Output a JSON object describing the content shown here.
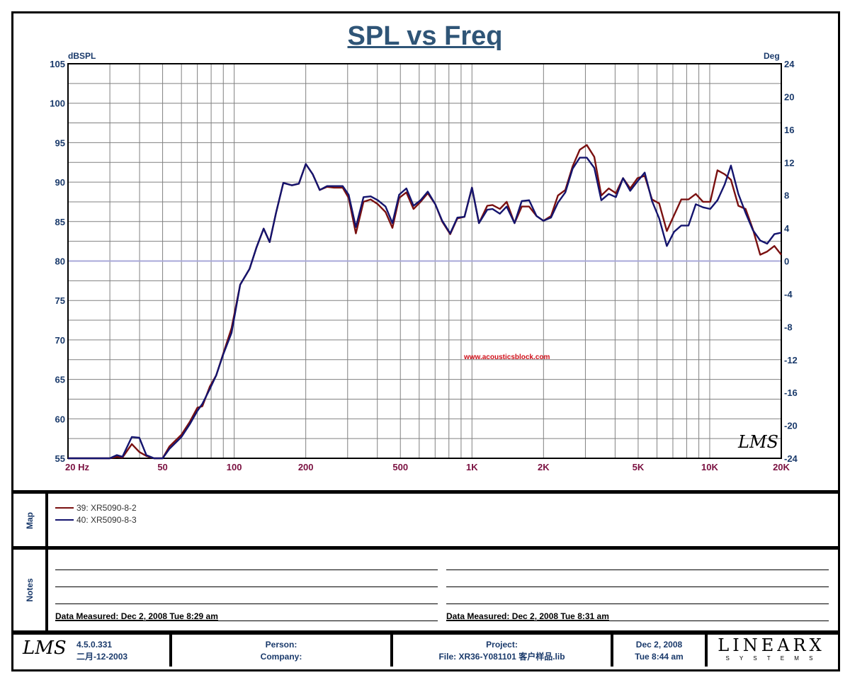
{
  "chart_data": {
    "type": "line",
    "title": "SPL vs Freq",
    "xlabel": "Hz",
    "ylabel": "dBSPL",
    "y2label": "Deg",
    "xscale": "log",
    "xlim": [
      20,
      20000
    ],
    "ylim": [
      55,
      105
    ],
    "y2lim": [
      -24,
      24
    ],
    "x_tick_labels": [
      {
        "v": 20,
        "t": "20  Hz"
      },
      {
        "v": 50,
        "t": "50"
      },
      {
        "v": 100,
        "t": "100"
      },
      {
        "v": 200,
        "t": "200"
      },
      {
        "v": 500,
        "t": "500"
      },
      {
        "v": 1000,
        "t": "1K"
      },
      {
        "v": 2000,
        "t": "2K"
      },
      {
        "v": 5000,
        "t": "5K"
      },
      {
        "v": 10000,
        "t": "10K"
      },
      {
        "v": 20000,
        "t": "20K"
      }
    ],
    "y_tick_labels": [
      "105",
      "100",
      "95",
      "90",
      "85",
      "80",
      "75",
      "70",
      "65",
      "60",
      "55"
    ],
    "y2_tick_labels": [
      "24",
      "20",
      "16",
      "12",
      "8",
      "4",
      "0",
      "-4",
      "-8",
      "-12",
      "-16",
      "-20",
      "-24"
    ],
    "grid": true,
    "x": [
      20,
      30,
      32.1,
      33.9,
      37.1,
      39.9,
      42.7,
      46,
      50,
      53.4,
      60,
      65,
      70,
      73.5,
      79,
      84,
      90,
      97.5,
      106,
      116,
      124,
      133,
      141,
      150,
      161,
      175,
      187,
      200,
      214,
      229,
      246,
      263,
      286,
      303,
      325,
      350,
      375,
      402,
      433,
      463,
      494,
      530,
      568,
      608,
      652,
      701,
      750,
      810,
      868,
      930,
      1000,
      1070,
      1160,
      1220,
      1310,
      1400,
      1510,
      1620,
      1740,
      1870,
      2000,
      2150,
      2300,
      2470,
      2650,
      2840,
      3040,
      3270,
      3500,
      3760,
      4030,
      4320,
      4630,
      4970,
      5330,
      5720,
      6130,
      6600,
      7080,
      7590,
      8140,
      8740,
      9370,
      10050,
      10780,
      11560,
      12280,
      13200,
      14150,
      15200,
      16300,
      17450,
      18700,
      20000
    ],
    "series": [
      {
        "name": "39: XR5090-8-2",
        "color": "#7a1010",
        "values": [
          55,
          55,
          55.2,
          55.1,
          56.8,
          55.8,
          55.3,
          55,
          55,
          56.5,
          58,
          59.6,
          61.4,
          61.6,
          64.1,
          65.5,
          68.3,
          71.5,
          77,
          79,
          81.7,
          84.1,
          82.4,
          86.1,
          89.9,
          89.6,
          89.8,
          92.3,
          91,
          89,
          89.4,
          89.3,
          89.3,
          88,
          83.5,
          87.5,
          87.8,
          87.2,
          86.2,
          84.2,
          88,
          88.7,
          86.6,
          87.5,
          88.6,
          87.2,
          85,
          83.4,
          85.4,
          85.6,
          89.3,
          84.8,
          87,
          87.1,
          86.6,
          87.5,
          84.8,
          86.9,
          86.9,
          85.7,
          85.1,
          85.7,
          88.3,
          89,
          92,
          94.1,
          94.7,
          93.2,
          88.3,
          89.2,
          88.6,
          90.5,
          89.2,
          90.5,
          90.8,
          87.8,
          87.3,
          83.8,
          85.8,
          87.8,
          87.8,
          88.5,
          87.5,
          87.5,
          91.5,
          91,
          90.3,
          87,
          86.6,
          84,
          80.8,
          81.2,
          81.9,
          80.8
        ]
      },
      {
        "name": "40: XR5090-8-3",
        "color": "#14146e",
        "values": [
          55,
          55,
          55.4,
          55.2,
          57.7,
          57.6,
          55.4,
          55,
          55,
          56.2,
          57.7,
          59.3,
          61,
          61.9,
          63.8,
          65.5,
          68.2,
          70.9,
          77,
          79,
          81.7,
          84.1,
          82.4,
          86.1,
          89.9,
          89.6,
          89.8,
          92.3,
          91,
          89,
          89.5,
          89.5,
          89.5,
          88.4,
          84.3,
          88.1,
          88.2,
          87.7,
          86.9,
          84.8,
          88.4,
          89.2,
          87,
          87.7,
          88.8,
          87.2,
          85.1,
          83.5,
          85.5,
          85.6,
          89.3,
          84.8,
          86.5,
          86.6,
          86,
          86.9,
          84.8,
          87.6,
          87.7,
          85.7,
          85.1,
          85.5,
          87.4,
          88.7,
          91.7,
          93.1,
          93.1,
          91.8,
          87.7,
          88.5,
          88.1,
          90.5,
          88.9,
          90.1,
          91.2,
          87.6,
          85.4,
          81.9,
          83.7,
          84.5,
          84.5,
          87.2,
          86.8,
          86.6,
          87.7,
          89.7,
          92.1,
          88.5,
          86.1,
          83.9,
          82.6,
          82.2,
          83.4,
          83.6
        ]
      }
    ],
    "legend": "bottom-panel",
    "annotation": "www.acousticsblock.com"
  },
  "colors": {
    "axis_text": "#1a3a6b",
    "x_text": "#7a1040",
    "grid": "#808080",
    "zero_line": "#a8a8d8"
  },
  "map": {
    "label": "Map"
  },
  "notes": {
    "label": "Notes",
    "left_measured": "Data Measured: Dec  2, 2008  Tue  8:29 am",
    "right_measured": "Data Measured: Dec  2, 2008  Tue  8:31 am"
  },
  "footer": {
    "logo": "LMS",
    "version": "4.5.0.331",
    "version_date": "二月-12-2003",
    "person": "Person:",
    "company": "Company:",
    "project": "Project:",
    "file": "File: XR36-Y081101 客户样品.lib",
    "date": "Dec  2, 2008",
    "time": "Tue  8:44 am",
    "brand": "LINEARX",
    "brand_sub": "S Y S T E M S"
  },
  "chart_logo": "LMS"
}
